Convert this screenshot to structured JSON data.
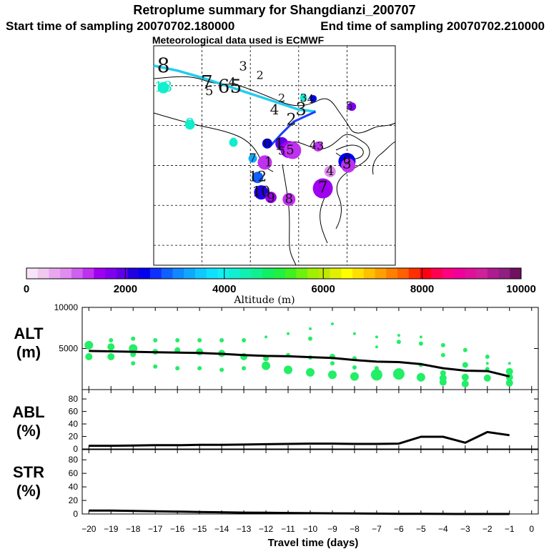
{
  "header": {
    "title": "Retroplume summary for Shangdianzi_200707",
    "start_label": "Start time of sampling 20070702.180000",
    "end_label": "End time of sampling 20070702.210000",
    "met_label": "Meteorological data used is ECMWF"
  },
  "colorbar": {
    "label": "Altitude (m)",
    "tick_labels": [
      "0",
      "2000",
      "4000",
      "6000",
      "8000",
      "10000"
    ],
    "tick_values": [
      0,
      2000,
      4000,
      6000,
      8000,
      10000
    ],
    "max": 10000,
    "colors": [
      "#f8e4f8",
      "#f0c8f0",
      "#e8a8f0",
      "#e08cf0",
      "#d060f0",
      "#c030f0",
      "#a000f0",
      "#8000f0",
      "#6000e8",
      "#2000e0",
      "#0000ee",
      "#1030ff",
      "#1060ff",
      "#1088ff",
      "#10a8ff",
      "#10c8ff",
      "#10e0ff",
      "#10f0f0",
      "#10f0d0",
      "#10f0b0",
      "#10f090",
      "#10f060",
      "#20f040",
      "#40f020",
      "#70f010",
      "#a0f000",
      "#c0e800",
      "#e0f000",
      "#ffff00",
      "#ffe000",
      "#ffc000",
      "#ffa000",
      "#ff8000",
      "#ff6000",
      "#ff3000",
      "#ff0010",
      "#ff0050",
      "#ff0080",
      "#f0009a",
      "#e0109a",
      "#d0209a",
      "#b01a90",
      "#902080",
      "#701060"
    ]
  },
  "map": {
    "trajectory_color": "#22ccee",
    "trajectory_color_recent": "#1a3dff",
    "labels": [
      {
        "t": "8",
        "lat": 44.95,
        "lon": 102.4,
        "size": 28,
        "color": "#111111"
      },
      {
        "t": "13",
        "lat": 43.9,
        "lon": 102.4,
        "size": 20,
        "color": "#10e8c0"
      },
      {
        "t": "7",
        "lat": 44.1,
        "lon": 104.2,
        "size": 26,
        "color": "#111111"
      },
      {
        "t": "5",
        "lat": 43.7,
        "lon": 104.3,
        "size": 18,
        "color": "#111111"
      },
      {
        "t": "6",
        "lat": 43.9,
        "lon": 104.9,
        "size": 26,
        "color": "#111111"
      },
      {
        "t": "5",
        "lat": 43.9,
        "lon": 105.4,
        "size": 26,
        "color": "#111111"
      },
      {
        "t": "4",
        "lat": 44.15,
        "lon": 105.25,
        "size": 16,
        "color": "#111111"
      },
      {
        "t": "3",
        "lat": 44.95,
        "lon": 105.7,
        "size": 18,
        "color": "#111111"
      },
      {
        "t": "2",
        "lat": 44.5,
        "lon": 106.4,
        "size": 16,
        "color": "#111111"
      },
      {
        "t": "2",
        "lat": 43.35,
        "lon": 107.3,
        "size": 16,
        "color": "#111111"
      },
      {
        "t": "3",
        "lat": 43.35,
        "lon": 108.2,
        "size": 16,
        "color": "#111111"
      },
      {
        "t": "4",
        "lat": 43.3,
        "lon": 108.5,
        "size": 16,
        "color": "#111111"
      },
      {
        "t": "4",
        "lat": 42.75,
        "lon": 107.0,
        "size": 20,
        "color": "#111111"
      },
      {
        "t": "3",
        "lat": 42.75,
        "lon": 108.1,
        "size": 24,
        "color": "#111111"
      },
      {
        "t": "5",
        "lat": 42.95,
        "lon": 110.1,
        "size": 16,
        "color": "#111111"
      },
      {
        "t": "2",
        "lat": 42.25,
        "lon": 107.7,
        "size": 22,
        "color": "#111111"
      },
      {
        "t": "9",
        "lat": 42.05,
        "lon": 103.5,
        "size": 20,
        "color": "#10e8c0"
      },
      {
        "t": "8",
        "lat": 41.15,
        "lon": 105.3,
        "size": 16,
        "color": "#10e8c0"
      },
      {
        "t": "6",
        "lat": 41.1,
        "lon": 106.7,
        "size": 16,
        "color": "#111111"
      },
      {
        "t": "1",
        "lat": 41.0,
        "lon": 107.2,
        "size": 22,
        "color": "#111111"
      },
      {
        "t": "5",
        "lat": 40.7,
        "lon": 107.3,
        "size": 16,
        "color": "#111111"
      },
      {
        "t": "5",
        "lat": 40.75,
        "lon": 107.65,
        "size": 18,
        "color": "#111111"
      },
      {
        "t": "3",
        "lat": 40.95,
        "lon": 108.9,
        "size": 16,
        "color": "#111111"
      },
      {
        "t": "4",
        "lat": 41.0,
        "lon": 108.6,
        "size": 16,
        "color": "#111111"
      },
      {
        "t": "7",
        "lat": 40.35,
        "lon": 106.1,
        "size": 16,
        "color": "#111111"
      },
      {
        "t": "1",
        "lat": 40.15,
        "lon": 106.75,
        "size": 18,
        "color": "#111111"
      },
      {
        "t": "6",
        "lat": 40.25,
        "lon": 110.0,
        "size": 18,
        "color": "#111111"
      },
      {
        "t": "3",
        "lat": 40.05,
        "lon": 110.0,
        "size": 20,
        "color": "#111111"
      },
      {
        "t": "4",
        "lat": 39.7,
        "lon": 109.3,
        "size": 18,
        "color": "#111111"
      },
      {
        "t": "12",
        "lat": 39.4,
        "lon": 106.3,
        "size": 20,
        "color": "#111111"
      },
      {
        "t": "7",
        "lat": 38.85,
        "lon": 109.0,
        "size": 22,
        "color": "#111111"
      },
      {
        "t": "10",
        "lat": 38.65,
        "lon": 106.45,
        "size": 20,
        "color": "#111111"
      },
      {
        "t": "9",
        "lat": 38.35,
        "lon": 106.85,
        "size": 18,
        "color": "#111111"
      },
      {
        "t": "8",
        "lat": 38.3,
        "lon": 107.6,
        "size": 18,
        "color": "#111111"
      }
    ]
  },
  "chart_data": [
    {
      "type": "scatter",
      "title": "Retroplume summary for Shangdianzi_200707",
      "xlabel": "Longitude",
      "ylabel": "Latitude",
      "xlim": [
        102.0,
        112.0
      ],
      "ylim": [
        35.0,
        46.0
      ],
      "trajectory": [
        {
          "lon": 102.0,
          "lat": 45.0
        },
        {
          "lon": 103.0,
          "lat": 44.75
        },
        {
          "lon": 104.0,
          "lat": 44.4
        },
        {
          "lon": 105.0,
          "lat": 44.0
        },
        {
          "lon": 106.0,
          "lat": 43.6
        },
        {
          "lon": 107.0,
          "lat": 43.2
        },
        {
          "lon": 108.0,
          "lat": 42.8
        },
        {
          "lon": 108.7,
          "lat": 42.7
        },
        {
          "lon": 107.8,
          "lat": 42.2
        },
        {
          "lon": 107.3,
          "lat": 41.6
        },
        {
          "lon": 106.85,
          "lat": 41.0
        }
      ],
      "points": [
        {
          "lon": 108.2,
          "lat": 43.4,
          "r": 5,
          "alt": 4200
        },
        {
          "lon": 108.6,
          "lat": 43.35,
          "r": 5,
          "alt": 2300
        },
        {
          "lon": 110.2,
          "lat": 42.95,
          "r": 6,
          "alt": 1700
        },
        {
          "lon": 102.4,
          "lat": 43.9,
          "r": 8,
          "alt": 4300
        },
        {
          "lon": 103.5,
          "lat": 42.05,
          "r": 7,
          "alt": 4200
        },
        {
          "lon": 105.3,
          "lat": 41.15,
          "r": 6,
          "alt": 4100
        },
        {
          "lon": 106.7,
          "lat": 41.1,
          "r": 7,
          "alt": 2300
        },
        {
          "lon": 107.3,
          "lat": 41.1,
          "r": 9,
          "alt": 2000
        },
        {
          "lon": 107.6,
          "lat": 40.8,
          "r": 12,
          "alt": 1400
        },
        {
          "lon": 107.75,
          "lat": 40.75,
          "r": 12,
          "alt": 1300
        },
        {
          "lon": 108.8,
          "lat": 40.95,
          "r": 7,
          "alt": 1200
        },
        {
          "lon": 106.1,
          "lat": 40.35,
          "r": 6,
          "alt": 3200
        },
        {
          "lon": 106.6,
          "lat": 40.15,
          "r": 10,
          "alt": 1300
        },
        {
          "lon": 110.0,
          "lat": 40.2,
          "r": 12,
          "alt": 2400
        },
        {
          "lon": 110.05,
          "lat": 40.0,
          "r": 10,
          "alt": 1300
        },
        {
          "lon": 109.3,
          "lat": 39.7,
          "r": 8,
          "alt": 900
        },
        {
          "lon": 106.3,
          "lat": 39.4,
          "r": 8,
          "alt": 2900
        },
        {
          "lon": 109.0,
          "lat": 38.85,
          "r": 14,
          "alt": 1400
        },
        {
          "lon": 106.45,
          "lat": 38.65,
          "r": 10,
          "alt": 2100
        },
        {
          "lon": 106.85,
          "lat": 38.4,
          "r": 8,
          "alt": 1500
        },
        {
          "lon": 107.6,
          "lat": 38.3,
          "r": 9,
          "alt": 1200
        }
      ]
    },
    {
      "type": "line",
      "title": "ALT (m)",
      "xlabel": "Travel time (days)",
      "ylabel": "ALT (m)",
      "ylim": [
        0,
        10000
      ],
      "xlim": [
        -20,
        0
      ],
      "y_ticks": [
        5000,
        10000
      ],
      "y_tick_labels": [
        "5000",
        "10000"
      ],
      "x": [
        -20,
        -19,
        -18,
        -17,
        -16,
        -15,
        -14,
        -13,
        -12,
        -11,
        -10,
        -9,
        -8,
        -7,
        -6,
        -5,
        -4,
        -3,
        -2,
        -1
      ],
      "values": [
        4700,
        4650,
        4600,
        4550,
        4500,
        4450,
        4350,
        4200,
        4100,
        4050,
        3950,
        3850,
        3600,
        3400,
        3350,
        3100,
        2600,
        2300,
        2250,
        1600
      ],
      "scatter": [
        {
          "x": -20,
          "y": 5400,
          "r": 6
        },
        {
          "x": -20,
          "y": 4000,
          "r": 5
        },
        {
          "x": -19,
          "y": 6000,
          "r": 3
        },
        {
          "x": -19,
          "y": 5200,
          "r": 5
        },
        {
          "x": -19,
          "y": 4000,
          "r": 5
        },
        {
          "x": -18,
          "y": 6200,
          "r": 3
        },
        {
          "x": -18,
          "y": 5000,
          "r": 6
        },
        {
          "x": -18,
          "y": 4300,
          "r": 4
        },
        {
          "x": -18,
          "y": 3200,
          "r": 3
        },
        {
          "x": -17,
          "y": 6000,
          "r": 3
        },
        {
          "x": -17,
          "y": 4600,
          "r": 4
        },
        {
          "x": -17,
          "y": 2800,
          "r": 3
        },
        {
          "x": -16,
          "y": 6000,
          "r": 3
        },
        {
          "x": -16,
          "y": 4800,
          "r": 4
        },
        {
          "x": -16,
          "y": 2600,
          "r": 3
        },
        {
          "x": -15,
          "y": 6000,
          "r": 3
        },
        {
          "x": -15,
          "y": 4600,
          "r": 5
        },
        {
          "x": -15,
          "y": 2600,
          "r": 3
        },
        {
          "x": -14,
          "y": 6000,
          "r": 3
        },
        {
          "x": -14,
          "y": 4400,
          "r": 5
        },
        {
          "x": -14,
          "y": 2400,
          "r": 3
        },
        {
          "x": -13,
          "y": 6000,
          "r": 3
        },
        {
          "x": -13,
          "y": 4000,
          "r": 5
        },
        {
          "x": -13,
          "y": 2600,
          "r": 3
        },
        {
          "x": -12,
          "y": 6400,
          "r": 2
        },
        {
          "x": -12,
          "y": 3800,
          "r": 4
        },
        {
          "x": -12,
          "y": 2900,
          "r": 6
        },
        {
          "x": -11,
          "y": 6800,
          "r": 2
        },
        {
          "x": -11,
          "y": 4200,
          "r": 3
        },
        {
          "x": -11,
          "y": 2400,
          "r": 6
        },
        {
          "x": -10,
          "y": 7400,
          "r": 2
        },
        {
          "x": -10,
          "y": 6200,
          "r": 3
        },
        {
          "x": -10,
          "y": 3900,
          "r": 3
        },
        {
          "x": -10,
          "y": 2100,
          "r": 6
        },
        {
          "x": -9,
          "y": 8000,
          "r": 2
        },
        {
          "x": -9,
          "y": 4000,
          "r": 4
        },
        {
          "x": -9,
          "y": 3200,
          "r": 3
        },
        {
          "x": -9,
          "y": 1800,
          "r": 6
        },
        {
          "x": -8,
          "y": 6800,
          "r": 2
        },
        {
          "x": -8,
          "y": 3800,
          "r": 3
        },
        {
          "x": -8,
          "y": 2700,
          "r": 3
        },
        {
          "x": -8,
          "y": 1600,
          "r": 6
        },
        {
          "x": -7,
          "y": 6400,
          "r": 2
        },
        {
          "x": -7,
          "y": 5200,
          "r": 2
        },
        {
          "x": -7,
          "y": 2600,
          "r": 3
        },
        {
          "x": -7,
          "y": 1800,
          "r": 8
        },
        {
          "x": -6,
          "y": 6600,
          "r": 2
        },
        {
          "x": -6,
          "y": 5800,
          "r": 3
        },
        {
          "x": -6,
          "y": 1900,
          "r": 8
        },
        {
          "x": -5,
          "y": 6400,
          "r": 2
        },
        {
          "x": -5,
          "y": 5600,
          "r": 3
        },
        {
          "x": -5,
          "y": 3000,
          "r": 3
        },
        {
          "x": -5,
          "y": 1500,
          "r": 6
        },
        {
          "x": -4,
          "y": 5400,
          "r": 3
        },
        {
          "x": -4,
          "y": 4200,
          "r": 3
        },
        {
          "x": -4,
          "y": 2000,
          "r": 4
        },
        {
          "x": -4,
          "y": 1400,
          "r": 5
        },
        {
          "x": -4,
          "y": 900,
          "r": 5
        },
        {
          "x": -3,
          "y": 4800,
          "r": 3
        },
        {
          "x": -3,
          "y": 3000,
          "r": 4
        },
        {
          "x": -3,
          "y": 1500,
          "r": 5
        },
        {
          "x": -3,
          "y": 700,
          "r": 5
        },
        {
          "x": -2,
          "y": 4000,
          "r": 3
        },
        {
          "x": -2,
          "y": 3200,
          "r": 2
        },
        {
          "x": -2,
          "y": 2500,
          "r": 3
        },
        {
          "x": -2,
          "y": 1400,
          "r": 5
        },
        {
          "x": -1,
          "y": 3200,
          "r": 2
        },
        {
          "x": -1,
          "y": 2200,
          "r": 5
        },
        {
          "x": -1,
          "y": 1500,
          "r": 5
        },
        {
          "x": -1,
          "y": 800,
          "r": 5
        }
      ]
    },
    {
      "type": "line",
      "title": "ABL (%)",
      "ylabel": "ABL (%)",
      "ylim": [
        0,
        95
      ],
      "y_ticks": [
        0,
        20,
        40,
        60,
        80
      ],
      "y_tick_labels": [
        "0",
        "20",
        "40",
        "60",
        "80"
      ],
      "x": [
        -20,
        -19,
        -18,
        -17,
        -16,
        -15,
        -14,
        -13,
        -12,
        -11,
        -10,
        -9,
        -8,
        -7,
        -6,
        -5,
        -4,
        -3,
        -2,
        -1
      ],
      "values": [
        5,
        5,
        5.5,
        6,
        6,
        6.5,
        6.5,
        7,
        7.5,
        8,
        8.5,
        8.5,
        8,
        8,
        8.5,
        19.5,
        19.5,
        10,
        27,
        22
      ]
    },
    {
      "type": "line",
      "title": "STR (%)",
      "ylabel": "STR (%)",
      "ylim": [
        0,
        95
      ],
      "y_ticks": [
        0,
        20,
        40,
        60,
        80
      ],
      "y_tick_labels": [
        "0",
        "20",
        "40",
        "60",
        "80"
      ],
      "xlabel": "Travel time (days)",
      "x_tick_labels": [
        "−20",
        "−19",
        "−18",
        "−17",
        "−16",
        "−15",
        "−14",
        "−13",
        "−12",
        "−11",
        "−10",
        "−9",
        "−8",
        "−7",
        "−6",
        "−5",
        "−4",
        "−3",
        "−2",
        "−1",
        "0"
      ],
      "x": [
        -20,
        -19,
        -18,
        -17,
        -16,
        -15,
        -14,
        -13,
        -12,
        -11,
        -10,
        -9,
        -8,
        -7,
        -6,
        -5,
        -4,
        -3,
        -2,
        -1
      ],
      "values": [
        5,
        5,
        4.5,
        4,
        3.5,
        3,
        2.5,
        2,
        1.8,
        1.5,
        1.2,
        1,
        0.8,
        0.5,
        0.3,
        0.2,
        0.1,
        0,
        0,
        0
      ]
    }
  ],
  "panels": {
    "alt": {
      "line1": "ALT",
      "line2": "(m)"
    },
    "abl": {
      "line1": "ABL",
      "line2": "(%)"
    },
    "str": {
      "line1": "STR",
      "line2": "(%)"
    }
  },
  "series_colors": {
    "scatter": "#22ee66",
    "line": "#000000"
  }
}
